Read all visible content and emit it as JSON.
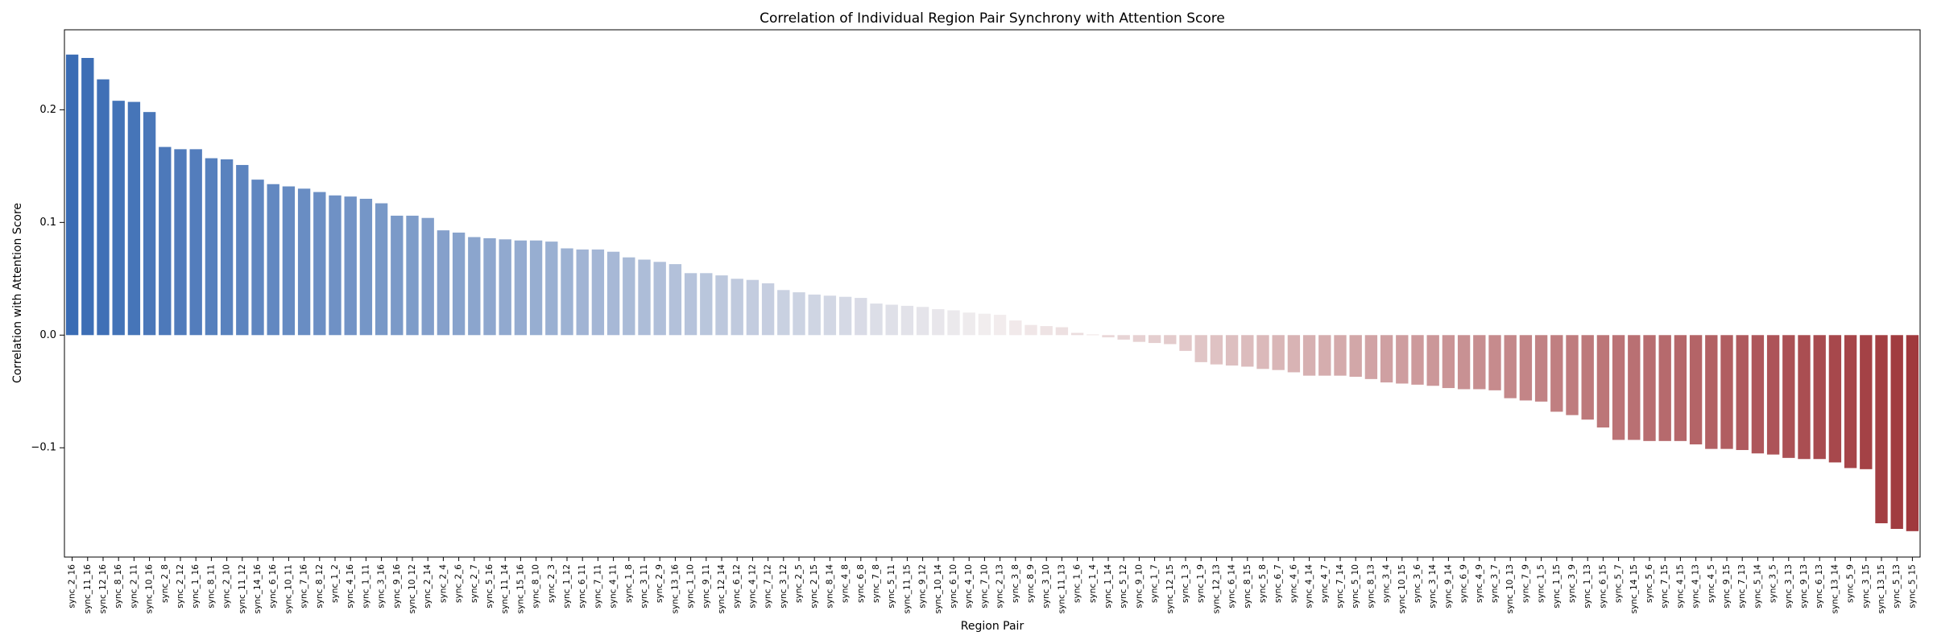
{
  "chart_data": {
    "type": "bar",
    "title": "Correlation of Individual Region Pair Synchrony with Attention Score",
    "x_label": "Region Pair",
    "y_label": "Correlation with Attention Score",
    "categories": [
      "sync_2_16",
      "sync_11_16",
      "sync_12_16",
      "sync_8_16",
      "sync_2_11",
      "sync_10_16",
      "sync_2_8",
      "sync_2_12",
      "sync_1_16",
      "sync_8_11",
      "sync_2_10",
      "sync_11_12",
      "sync_14_16",
      "sync_6_16",
      "sync_10_11",
      "sync_7_16",
      "sync_8_12",
      "sync_1_2",
      "sync_4_16",
      "sync_1_11",
      "sync_3_16",
      "sync_9_16",
      "sync_10_12",
      "sync_2_14",
      "sync_2_4",
      "sync_2_6",
      "sync_2_7",
      "sync_5_16",
      "sync_11_14",
      "sync_15_16",
      "sync_8_10",
      "sync_2_3",
      "sync_1_12",
      "sync_6_11",
      "sync_7_11",
      "sync_4_11",
      "sync_1_8",
      "sync_3_11",
      "sync_2_9",
      "sync_13_16",
      "sync_1_10",
      "sync_9_11",
      "sync_12_14",
      "sync_6_12",
      "sync_4_12",
      "sync_7_12",
      "sync_3_12",
      "sync_2_5",
      "sync_2_15",
      "sync_8_14",
      "sync_4_8",
      "sync_6_8",
      "sync_7_8",
      "sync_5_11",
      "sync_11_15",
      "sync_9_12",
      "sync_10_14",
      "sync_6_10",
      "sync_4_10",
      "sync_7_10",
      "sync_2_13",
      "sync_3_8",
      "sync_8_9",
      "sync_3_10",
      "sync_11_13",
      "sync_1_6",
      "sync_1_4",
      "sync_1_14",
      "sync_5_12",
      "sync_9_10",
      "sync_1_7",
      "sync_12_15",
      "sync_1_3",
      "sync_1_9",
      "sync_12_13",
      "sync_6_14",
      "sync_8_15",
      "sync_5_8",
      "sync_6_7",
      "sync_4_6",
      "sync_4_14",
      "sync_4_7",
      "sync_7_14",
      "sync_5_10",
      "sync_8_13",
      "sync_3_4",
      "sync_10_15",
      "sync_3_6",
      "sync_3_14",
      "sync_9_14",
      "sync_6_9",
      "sync_4_9",
      "sync_3_7",
      "sync_10_13",
      "sync_7_9",
      "sync_1_5",
      "sync_1_15",
      "sync_3_9",
      "sync_1_13",
      "sync_6_15",
      "sync_5_7",
      "sync_14_15",
      "sync_5_6",
      "sync_7_15",
      "sync_4_15",
      "sync_4_13",
      "sync_4_5",
      "sync_9_15",
      "sync_7_13",
      "sync_5_14",
      "sync_3_5",
      "sync_3_13",
      "sync_9_13",
      "sync_6_13",
      "sync_13_14",
      "sync_5_9",
      "sync_3_15",
      "sync_13_15",
      "sync_5_13",
      "sync_5_15"
    ],
    "values": [
      0.249,
      0.246,
      0.227,
      0.208,
      0.207,
      0.198,
      0.167,
      0.165,
      0.165,
      0.157,
      0.156,
      0.151,
      0.138,
      0.134,
      0.132,
      0.13,
      0.127,
      0.124,
      0.123,
      0.121,
      0.117,
      0.106,
      0.106,
      0.104,
      0.093,
      0.091,
      0.087,
      0.086,
      0.085,
      0.084,
      0.084,
      0.083,
      0.077,
      0.076,
      0.076,
      0.074,
      0.069,
      0.067,
      0.065,
      0.063,
      0.055,
      0.055,
      0.053,
      0.05,
      0.049,
      0.046,
      0.04,
      0.038,
      0.036,
      0.035,
      0.034,
      0.033,
      0.028,
      0.027,
      0.026,
      0.025,
      0.023,
      0.022,
      0.02,
      0.019,
      0.018,
      0.013,
      0.009,
      0.008,
      0.007,
      0.002,
      0.0005,
      -0.002,
      -0.004,
      -0.006,
      -0.007,
      -0.008,
      -0.014,
      -0.024,
      -0.026,
      -0.027,
      -0.028,
      -0.03,
      -0.031,
      -0.033,
      -0.036,
      -0.036,
      -0.036,
      -0.037,
      -0.039,
      -0.042,
      -0.043,
      -0.044,
      -0.045,
      -0.047,
      -0.048,
      -0.048,
      -0.049,
      -0.056,
      -0.058,
      -0.059,
      -0.068,
      -0.071,
      -0.075,
      -0.082,
      -0.093,
      -0.093,
      -0.094,
      -0.094,
      -0.094,
      -0.097,
      -0.101,
      -0.101,
      -0.102,
      -0.105,
      -0.106,
      -0.109,
      -0.11,
      -0.11,
      -0.113,
      -0.118,
      -0.119,
      -0.167,
      -0.172,
      -0.174
    ],
    "palette": [
      "#3a6cb4",
      "#f3eeee",
      "#a0393d"
    ],
    "ylim": [
      -0.197,
      0.271
    ],
    "yticks": [
      {
        "value": -0.1,
        "label": "−0.1"
      },
      {
        "value": 0,
        "label": "0.0"
      },
      0.1,
      0.2
    ]
  }
}
